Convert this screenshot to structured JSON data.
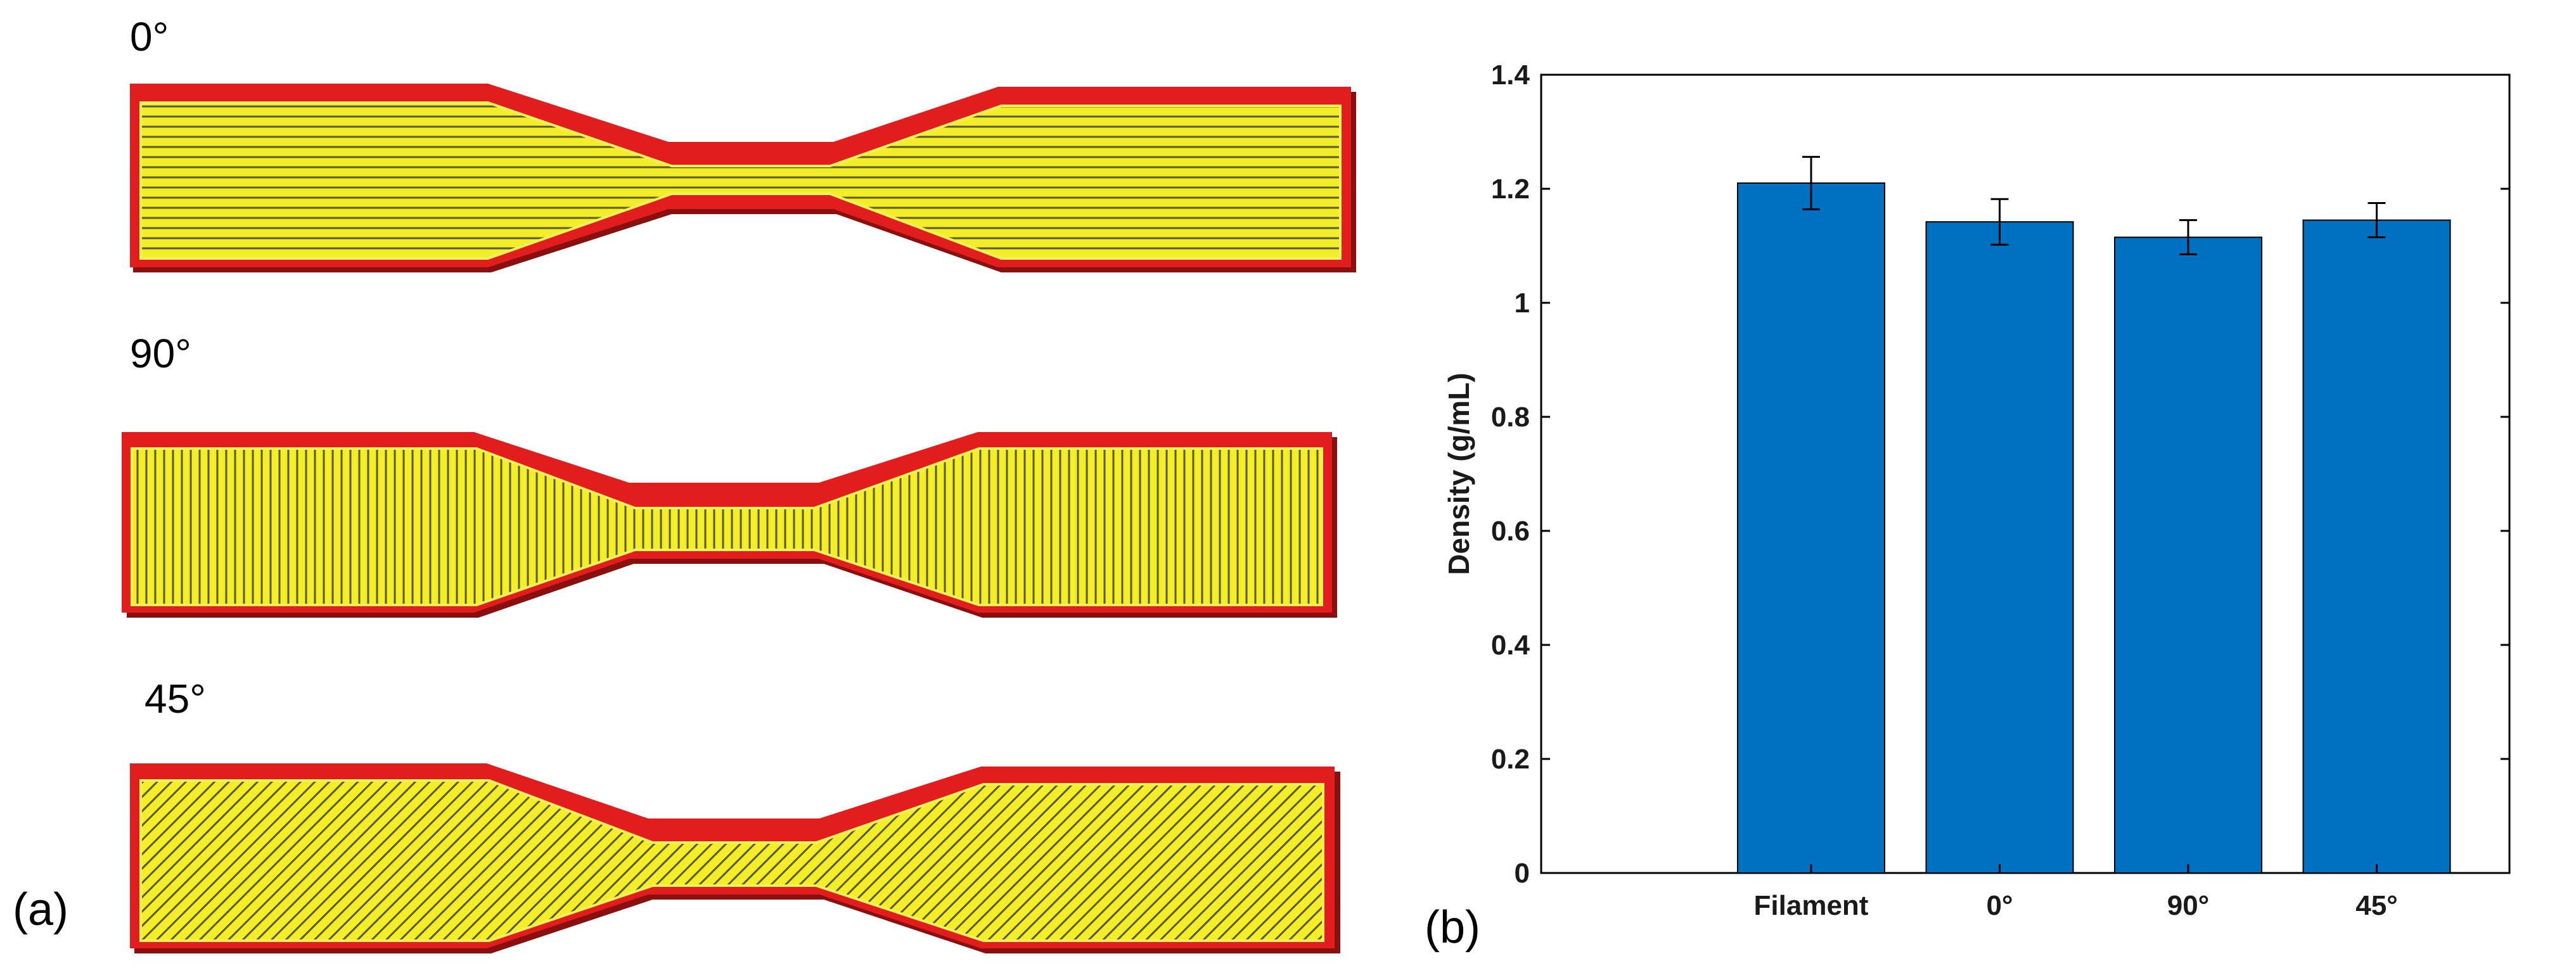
{
  "panel_a": {
    "label": "(a)",
    "specimens": [
      {
        "angle_label": "0°",
        "raster_angle": 0
      },
      {
        "angle_label": "90°",
        "raster_angle": 90
      },
      {
        "angle_label": "45°",
        "raster_angle": 45
      }
    ],
    "colors": {
      "perimeter": "#e8201f",
      "infill": "#f4ee2a",
      "infill_line": "#5a5a10"
    }
  },
  "panel_b": {
    "label": "(b)"
  },
  "chart_data": {
    "type": "bar",
    "categories": [
      "Filament",
      "0°",
      "90°",
      "45°"
    ],
    "values": [
      1.21,
      1.142,
      1.115,
      1.145
    ],
    "errors": [
      0.046,
      0.04,
      0.03,
      0.03
    ],
    "ylabel": "Density (g/mL)",
    "ylim": [
      0,
      1.4
    ],
    "yticks": [
      "0",
      "0.2",
      "0.4",
      "0.6",
      "0.8",
      "1",
      "1.2",
      "1.4"
    ],
    "grid": false,
    "bar_color": "#0070c0"
  }
}
